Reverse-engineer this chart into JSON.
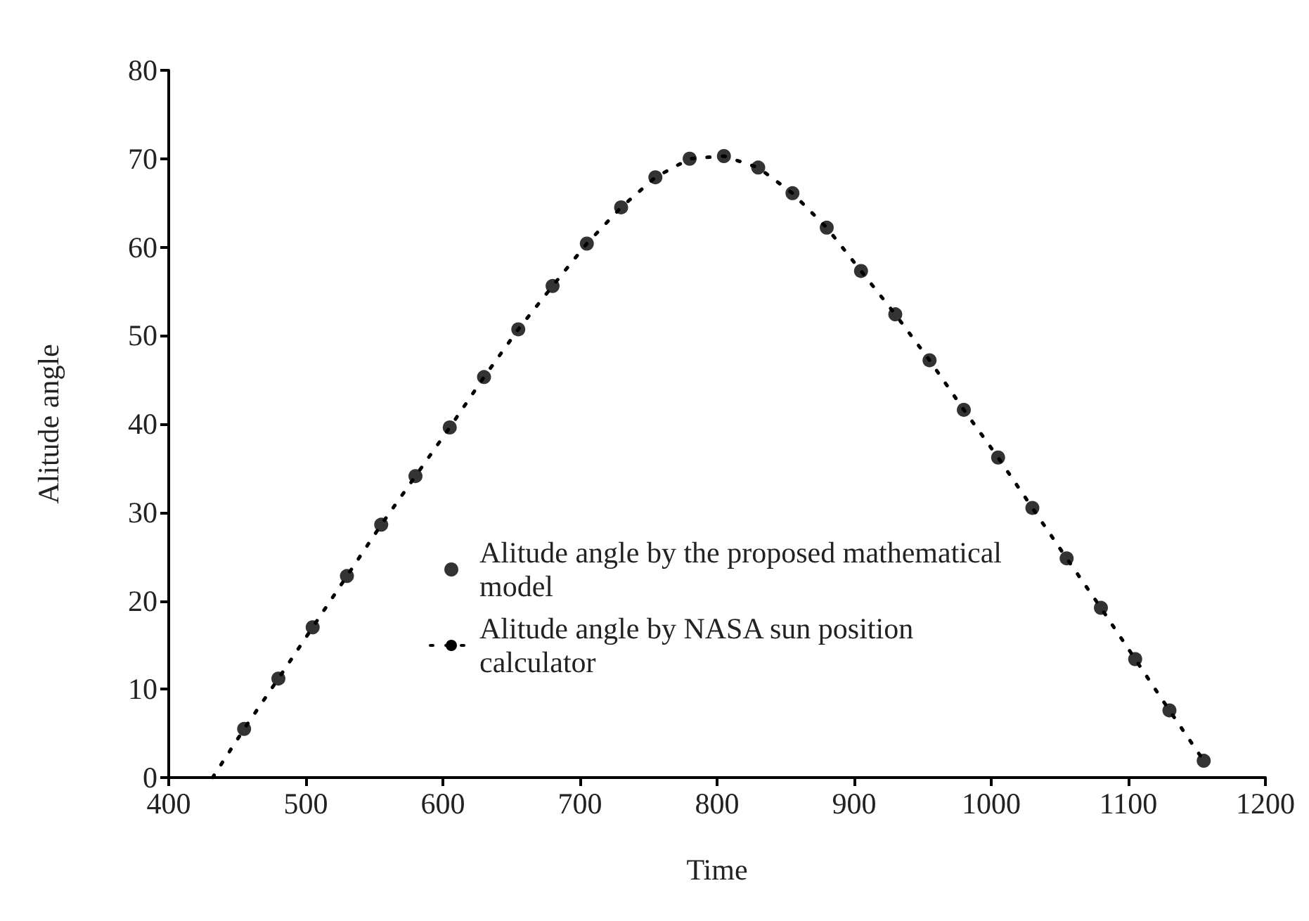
{
  "chart_data": {
    "type": "scatter",
    "xlabel": "Time",
    "ylabel": "Alitude angle",
    "xlim": [
      400,
      1200
    ],
    "xticks": [
      400,
      500,
      600,
      700,
      800,
      900,
      1000,
      1100,
      1200
    ],
    "ylim": [
      0,
      80
    ],
    "yticks": [
      0,
      10,
      20,
      30,
      40,
      50,
      60,
      70,
      80
    ],
    "grid": false,
    "legend": "bottom",
    "series": [
      {
        "name": "Alitude angle by the proposed mathematical model",
        "marker": "circle",
        "color": "#000000",
        "x": [
          455,
          480,
          505,
          530,
          555,
          580,
          605,
          630,
          655,
          680,
          705,
          730,
          755,
          780,
          805,
          830,
          855,
          880,
          905,
          930,
          955,
          980,
          1005,
          1030,
          1055,
          1080,
          1105,
          1130,
          1155
        ],
        "values": [
          5.5,
          11.2,
          17,
          22.8,
          28.6,
          34.1,
          39.6,
          45.3,
          50.7,
          55.6,
          60.4,
          64.5,
          67.9,
          70,
          70.3,
          69,
          66.1,
          62.2,
          57.3,
          52.4,
          47.2,
          41.6,
          36.2,
          30.5,
          24.8,
          19.2,
          13.4,
          7.6,
          1.9
        ]
      },
      {
        "name": "Alitude angle by NASA sun position calculator",
        "type": "line",
        "marker": "none",
        "line_style": "dotted",
        "color": "#000000",
        "x": [
          432,
          455,
          480,
          505,
          530,
          555,
          580,
          605,
          630,
          655,
          680,
          705,
          730,
          755,
          780,
          805,
          830,
          855,
          880,
          905,
          930,
          955,
          980,
          1005,
          1030,
          1055,
          1080,
          1105,
          1130,
          1155
        ],
        "values": [
          0,
          5.5,
          11.2,
          17,
          22.8,
          28.6,
          34.1,
          39.6,
          45.3,
          50.7,
          55.6,
          60.4,
          64.5,
          67.9,
          70,
          70.3,
          69,
          66.1,
          62.2,
          57.3,
          52.4,
          47.2,
          41.6,
          36.2,
          30.5,
          24.8,
          19.2,
          13.4,
          7.6,
          1.9
        ]
      }
    ]
  }
}
